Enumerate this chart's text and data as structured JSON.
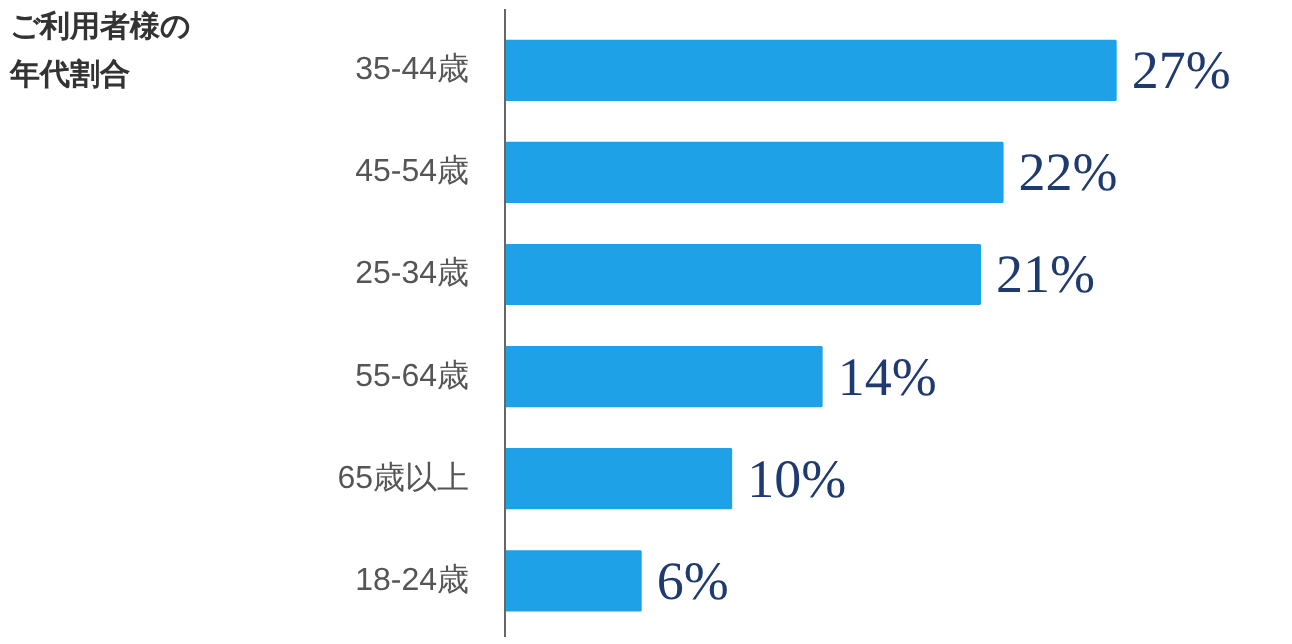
{
  "chart_data": {
    "type": "bar",
    "orientation": "horizontal",
    "title": "ご利用者様の年代割合",
    "categories": [
      "35-44歳",
      "45-54歳",
      "25-34歳",
      "55-64歳",
      "65歳以上",
      "18-24歳"
    ],
    "values": [
      27,
      22,
      21,
      14,
      10,
      6
    ],
    "value_labels": [
      "27%",
      "22%",
      "21%",
      "14%",
      "10%",
      "6%"
    ],
    "color": "#1ea1e6",
    "grid": false
  }
}
